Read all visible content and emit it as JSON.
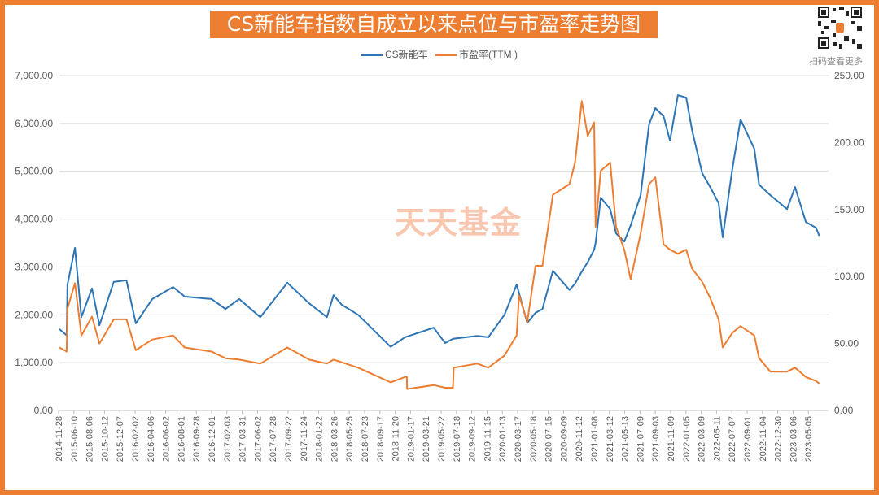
{
  "header": {
    "title": "CS新能车指数自成立以来点位与市盈率走势图",
    "qr_caption": "扫码查看更多",
    "watermark": "天天基金"
  },
  "colors": {
    "frame": "#ed7d31",
    "index_line": "#2e75b6",
    "pe_line": "#ed7d31",
    "title_bg": "#ed7d31"
  },
  "chart_data": {
    "type": "line",
    "title": "CS新能车指数自成立以来点位与市盈率走势图",
    "legend_position": "top",
    "grid": true,
    "categories": [
      "2014-11-28",
      "2015-06-10",
      "2015-08-06",
      "2015-10-12",
      "2015-12-07",
      "2016-02-02",
      "2016-04-06",
      "2016-06-02",
      "2016-08-01",
      "2016-09-28",
      "2016-12-01",
      "2017-02-03",
      "2017-03-31",
      "2017-06-02",
      "2017-07-28",
      "2017-09-22",
      "2017-11-24",
      "2018-01-22",
      "2018-03-26",
      "2018-05-25",
      "2018-07-23",
      "2018-09-17",
      "2018-11-20",
      "2019-01-17",
      "2019-03-21",
      "2019-05-22",
      "2019-07-18",
      "2019-09-12",
      "2019-11-15",
      "2020-01-13",
      "2020-03-17",
      "2020-05-18",
      "2020-07-15",
      "2020-09-09",
      "2020-11-12",
      "2021-01-08",
      "2021-03-12",
      "2021-05-13",
      "2021-07-09",
      "2021-09-03",
      "2021-11-09",
      "2022-01-05",
      "2022-03-09",
      "2022-05-11",
      "2022-07-07",
      "2022-09-01",
      "2022-11-04",
      "2022-12-30",
      "2023-03-06",
      "2023-05-05"
    ],
    "y_left": {
      "min": 0,
      "max": 7000,
      "ticks": [
        "0.00",
        "1,000.00",
        "2,000.00",
        "3,000.00",
        "4,000.00",
        "5,000.00",
        "6,000.00",
        "7,000.00"
      ]
    },
    "y_right": {
      "min": 0,
      "max": 250,
      "ticks": [
        "0.00",
        "50.00",
        "100.00",
        "150.00",
        "200.00",
        "250.00"
      ]
    },
    "series": [
      {
        "name": "CS新能车",
        "axis": "left",
        "color": "#2e75b6",
        "points": [
          [
            "2014-12-08",
            1700
          ],
          [
            "2015-03-10",
            1570
          ],
          [
            "2015-03-20",
            2630
          ],
          [
            "2015-06-14",
            3400
          ],
          [
            "2015-07-08",
            1950
          ],
          [
            "2015-08-18",
            2550
          ],
          [
            "2015-09-20",
            1780
          ],
          [
            "2015-11-15",
            2690
          ],
          [
            "2016-01-01",
            2720
          ],
          [
            "2016-02-05",
            1820
          ],
          [
            "2016-04-13",
            2330
          ],
          [
            "2016-07-01",
            2580
          ],
          [
            "2016-08-15",
            2380
          ],
          [
            "2016-12-01",
            2330
          ],
          [
            "2017-01-28",
            2120
          ],
          [
            "2017-03-20",
            2330
          ],
          [
            "2017-06-12",
            1950
          ],
          [
            "2017-09-19",
            2670
          ],
          [
            "2017-12-16",
            2240
          ],
          [
            "2018-02-25",
            1950
          ],
          [
            "2018-03-24",
            2410
          ],
          [
            "2018-04-25",
            2210
          ],
          [
            "2018-06-28",
            2000
          ],
          [
            "2018-11-01",
            1330
          ],
          [
            "2018-12-27",
            1530
          ],
          [
            "2019-04-22",
            1730
          ],
          [
            "2019-06-06",
            1410
          ],
          [
            "2019-07-06",
            1500
          ],
          [
            "2019-10-05",
            1560
          ],
          [
            "2019-11-20",
            1530
          ],
          [
            "2020-01-22",
            2000
          ],
          [
            "2020-03-13",
            2630
          ],
          [
            "2020-03-23",
            2450
          ],
          [
            "2020-04-25",
            1830
          ],
          [
            "2020-05-28",
            2040
          ],
          [
            "2020-06-23",
            2120
          ],
          [
            "2020-08-01",
            2920
          ],
          [
            "2020-10-04",
            2520
          ],
          [
            "2020-10-27",
            2650
          ],
          [
            "2020-11-23",
            2900
          ],
          [
            "2020-12-15",
            3100
          ],
          [
            "2021-01-08",
            3360
          ],
          [
            "2021-01-14",
            3500
          ],
          [
            "2021-02-04",
            4450
          ],
          [
            "2021-03-15",
            4210
          ],
          [
            "2021-04-08",
            3700
          ],
          [
            "2021-05-11",
            3530
          ],
          [
            "2021-06-04",
            3870
          ],
          [
            "2021-07-11",
            4500
          ],
          [
            "2021-08-11",
            5980
          ],
          [
            "2021-09-03",
            6320
          ],
          [
            "2021-10-09",
            6150
          ],
          [
            "2021-11-06",
            5640
          ],
          [
            "2021-12-06",
            6590
          ],
          [
            "2022-01-06",
            6540
          ],
          [
            "2022-01-30",
            5860
          ],
          [
            "2022-03-13",
            4960
          ],
          [
            "2022-04-15",
            4670
          ],
          [
            "2022-05-19",
            4330
          ],
          [
            "2022-06-03",
            3620
          ],
          [
            "2022-07-09",
            5060
          ],
          [
            "2022-08-08",
            6080
          ],
          [
            "2022-10-01",
            5470
          ],
          [
            "2022-10-21",
            4720
          ],
          [
            "2022-12-03",
            4500
          ],
          [
            "2023-02-08",
            4210
          ],
          [
            "2023-03-14",
            4670
          ],
          [
            "2023-04-25",
            3940
          ],
          [
            "2023-06-04",
            3820
          ],
          [
            "2023-06-17",
            3650
          ]
        ]
      },
      {
        "name": "市盈率(TTM )",
        "axis": "right",
        "color": "#ed7d31",
        "points": [
          [
            "2014-12-08",
            47
          ],
          [
            "2015-03-10",
            44
          ],
          [
            "2015-03-20",
            76
          ],
          [
            "2015-06-14",
            95
          ],
          [
            "2015-07-08",
            56
          ],
          [
            "2015-08-18",
            70
          ],
          [
            "2015-09-20",
            50
          ],
          [
            "2015-11-15",
            68
          ],
          [
            "2016-01-01",
            68
          ],
          [
            "2016-02-05",
            45
          ],
          [
            "2016-04-13",
            53
          ],
          [
            "2016-07-01",
            56
          ],
          [
            "2016-08-15",
            47
          ],
          [
            "2016-12-01",
            44
          ],
          [
            "2017-01-28",
            39
          ],
          [
            "2017-03-20",
            38
          ],
          [
            "2017-06-12",
            35
          ],
          [
            "2017-09-19",
            47
          ],
          [
            "2017-12-16",
            38
          ],
          [
            "2018-02-25",
            35
          ],
          [
            "2018-03-24",
            38
          ],
          [
            "2018-04-25",
            36
          ],
          [
            "2018-06-28",
            32
          ],
          [
            "2018-11-01",
            21
          ],
          [
            "2018-12-27",
            25
          ],
          [
            "2019-01-03",
            25
          ],
          [
            "2019-01-04",
            16
          ],
          [
            "2019-04-22",
            19
          ],
          [
            "2019-06-06",
            17
          ],
          [
            "2019-07-05",
            17
          ],
          [
            "2019-07-08",
            32
          ],
          [
            "2019-10-05",
            35
          ],
          [
            "2019-11-20",
            32
          ],
          [
            "2020-01-22",
            41
          ],
          [
            "2020-03-13",
            56
          ],
          [
            "2020-03-23",
            86
          ],
          [
            "2020-04-25",
            66
          ],
          [
            "2020-05-28",
            108
          ],
          [
            "2020-06-23",
            108
          ],
          [
            "2020-08-01",
            161
          ],
          [
            "2020-10-04",
            169
          ],
          [
            "2020-10-27",
            185
          ],
          [
            "2020-11-23",
            231
          ],
          [
            "2020-12-15",
            205
          ],
          [
            "2021-01-08",
            215
          ],
          [
            "2021-01-14",
            137
          ],
          [
            "2021-02-04",
            179
          ],
          [
            "2021-03-15",
            185
          ],
          [
            "2021-04-08",
            137
          ],
          [
            "2021-05-11",
            120
          ],
          [
            "2021-06-04",
            98
          ],
          [
            "2021-07-11",
            132
          ],
          [
            "2021-08-11",
            169
          ],
          [
            "2021-09-03",
            174
          ],
          [
            "2021-10-09",
            124
          ],
          [
            "2021-11-06",
            120
          ],
          [
            "2021-12-06",
            117
          ],
          [
            "2022-01-06",
            120
          ],
          [
            "2022-01-30",
            106
          ],
          [
            "2022-03-13",
            96
          ],
          [
            "2022-04-15",
            84
          ],
          [
            "2022-05-19",
            68
          ],
          [
            "2022-06-03",
            47
          ],
          [
            "2022-07-09",
            58
          ],
          [
            "2022-08-08",
            63
          ],
          [
            "2022-10-01",
            56
          ],
          [
            "2022-10-21",
            39
          ],
          [
            "2022-12-03",
            29
          ],
          [
            "2023-02-08",
            29
          ],
          [
            "2023-03-14",
            32
          ],
          [
            "2023-04-25",
            25
          ],
          [
            "2023-06-04",
            22
          ],
          [
            "2023-06-17",
            20
          ]
        ]
      }
    ]
  }
}
